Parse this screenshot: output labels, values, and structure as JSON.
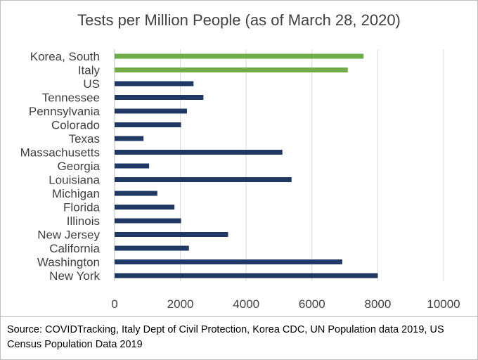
{
  "chart_data": {
    "type": "bar",
    "orientation": "horizontal",
    "title": "Tests per Million People (as of March 28, 2020)",
    "categories": [
      "Korea, South",
      "Italy",
      "US",
      "Tennessee",
      "Pennsylvania",
      "Colorado",
      "Texas",
      "Massachusetts",
      "Georgia",
      "Louisiana",
      "Michigan",
      "Florida",
      "Illinois",
      "New Jersey",
      "California",
      "Washington",
      "New York"
    ],
    "values": [
      7570,
      7090,
      2400,
      2700,
      2200,
      2020,
      880,
      5100,
      1050,
      5380,
      1300,
      1820,
      2020,
      3450,
      2260,
      6920,
      8000
    ],
    "highlight": [
      true,
      true,
      false,
      false,
      false,
      false,
      false,
      false,
      false,
      false,
      false,
      false,
      false,
      false,
      false,
      false,
      false
    ],
    "xlim": [
      0,
      10000
    ],
    "xticks": [
      "0",
      "2000",
      "4000",
      "6000",
      "8000",
      "10000"
    ],
    "xtick_values": [
      0,
      2000,
      4000,
      6000,
      8000,
      10000
    ],
    "grid": true,
    "xlabel": "",
    "ylabel": "",
    "colors": {
      "highlight": "#70ad47",
      "default": "#1f3864",
      "grid": "#d9d9d9",
      "axis": "#bfbfbf"
    }
  },
  "source_note": "Source: COVIDTracking, Italy Dept of Civil Protection, Korea CDC, UN Population data 2019, US Census Population Data 2019"
}
